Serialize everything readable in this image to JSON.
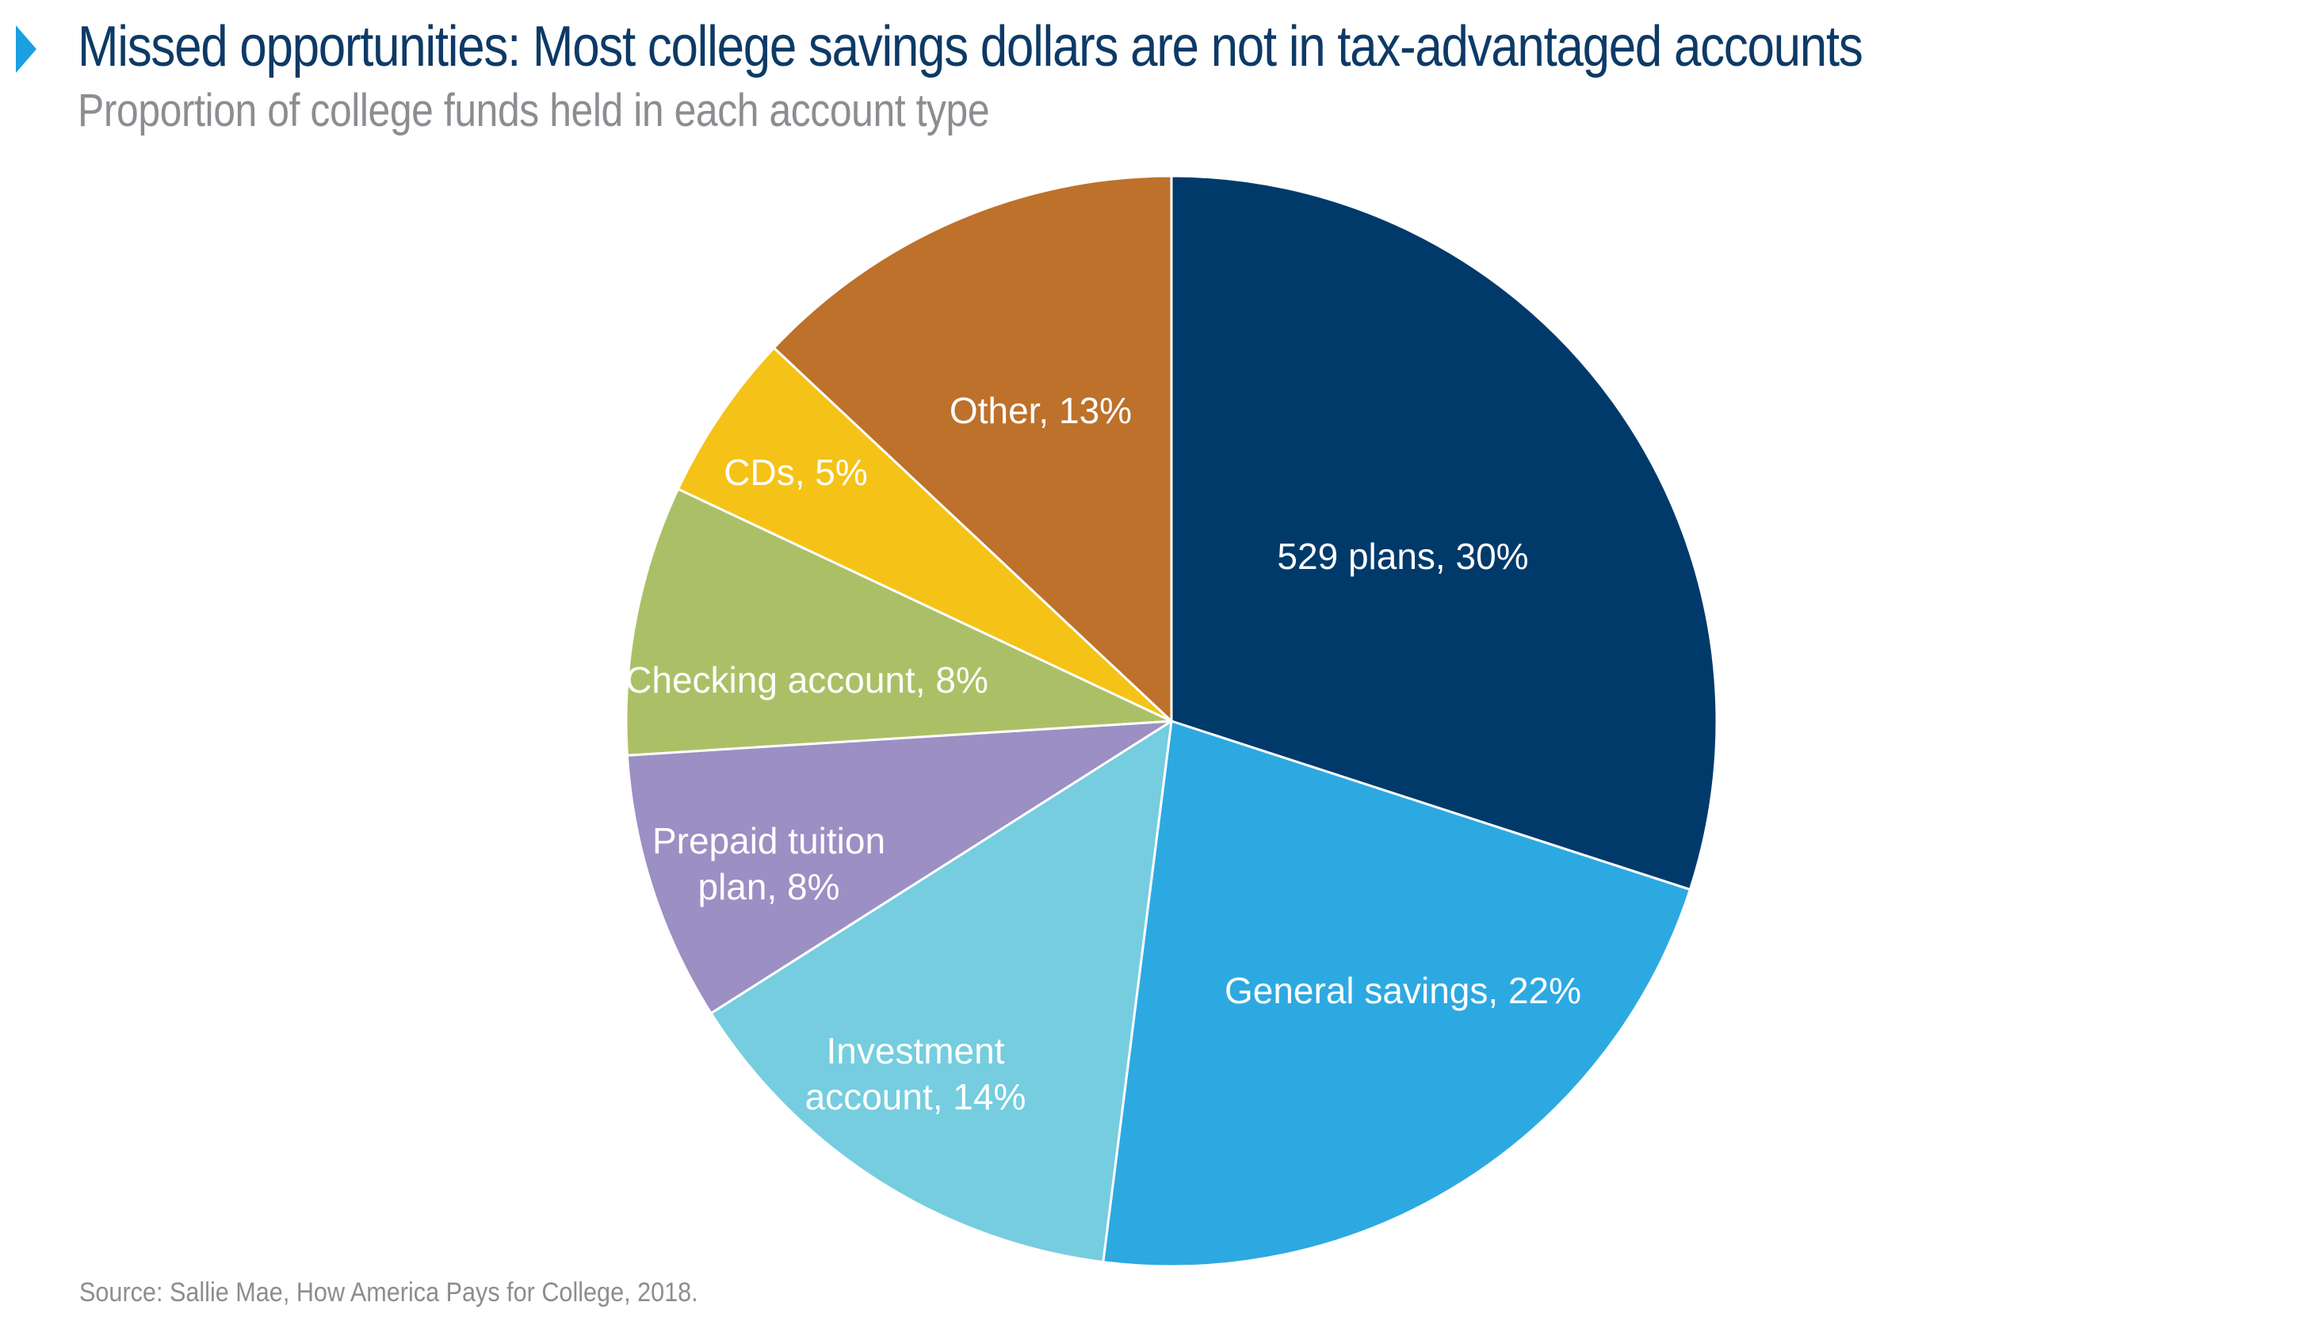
{
  "header": {
    "title": "Missed opportunities: Most college savings dollars are not in tax-advantaged accounts",
    "subtitle": "Proportion of college funds held in each account type"
  },
  "chart_data": {
    "type": "pie",
    "title": "Missed opportunities: Most college savings dollars are not in tax-advantaged accounts",
    "subtitle": "Proportion of college funds held in each account type",
    "unit": "%",
    "start": "12 o'clock",
    "direction": "clockwise",
    "slices": [
      {
        "label_lines": [
          "529 plans, 30%"
        ],
        "value": 30,
        "color": "#003a6b"
      },
      {
        "label_lines": [
          "General savings, 22%"
        ],
        "value": 22,
        "color": "#2da9e1"
      },
      {
        "label_lines": [
          "Investment",
          "account, 14%"
        ],
        "value": 14,
        "color": "#75cddf"
      },
      {
        "label_lines": [
          "Prepaid tuition",
          "plan, 8%"
        ],
        "value": 8,
        "color": "#9b8fc4"
      },
      {
        "label_lines": [
          "Checking account, 8%"
        ],
        "value": 8,
        "color": "#abc066"
      },
      {
        "label_lines": [
          "CDs, 5%"
        ],
        "value": 5,
        "color": "#f5c217"
      },
      {
        "label_lines": [
          "Other, 13%"
        ],
        "value": 13,
        "color": "#bd712b"
      }
    ]
  },
  "footer": {
    "source": "Source: Sallie Mae, How America Pays for College, 2018."
  }
}
